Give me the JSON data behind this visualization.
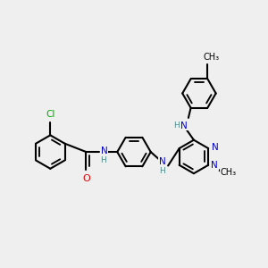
{
  "bg_color": "#efefef",
  "bond_color": "#000000",
  "bond_width": 1.5,
  "dbo": 0.055,
  "atom_colors": {
    "N": "#0000cc",
    "O": "#dd0000",
    "Cl": "#00aa00",
    "C": "#000000",
    "H": "#4a8a8a"
  },
  "fs": 7.5,
  "r": 0.28
}
